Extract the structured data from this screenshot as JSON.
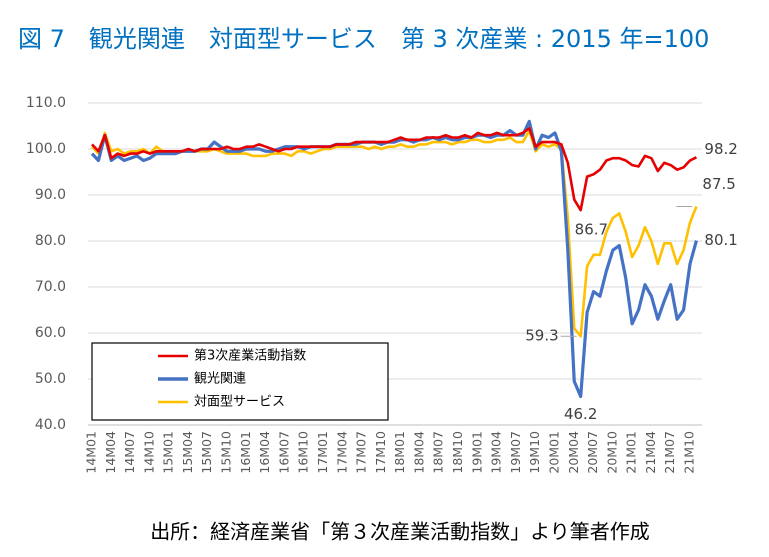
{
  "chart_data": {
    "type": "line",
    "title": "図 7　観光関連　対面型サービス　第 3 次産業 : 2015 年=100",
    "source": "出所：経済産業省「第３次産業活動指数」より筆者作成",
    "categories": [
      "14M01",
      null,
      null,
      "14M04",
      null,
      null,
      "14M07",
      null,
      null,
      "14M10",
      null,
      null,
      "15M01",
      null,
      null,
      "15M04",
      null,
      null,
      "15M07",
      null,
      null,
      "15M10",
      null,
      null,
      "16M01",
      null,
      null,
      "16M04",
      null,
      null,
      "16M07",
      null,
      null,
      "16M10",
      null,
      null,
      "17M01",
      null,
      null,
      "17M04",
      null,
      null,
      "17M07",
      null,
      null,
      "17M10",
      null,
      null,
      "18M01",
      null,
      null,
      "18M04",
      null,
      null,
      "18M07",
      null,
      null,
      "18M10",
      null,
      null,
      "19M01",
      null,
      null,
      "19M04",
      null,
      null,
      "19M07",
      null,
      null,
      "19M10",
      null,
      null,
      "20M01",
      null,
      null,
      "20M04",
      null,
      null,
      "20M07",
      null,
      null,
      "20M10",
      null,
      null,
      "21M01",
      null,
      null,
      "21M04",
      null,
      null,
      "21M07",
      null,
      null,
      "21M10",
      null
    ],
    "ylim": [
      40,
      110
    ],
    "yticks": [
      {
        "value": 40,
        "label": "40.0"
      },
      {
        "value": 50,
        "label": "50.0"
      },
      {
        "value": 60,
        "label": "60.0"
      },
      {
        "value": 70,
        "label": "70.0"
      },
      {
        "value": 80,
        "label": "80.0"
      },
      {
        "value": 90,
        "label": "90.0"
      },
      {
        "value": 100,
        "label": "100.0"
      },
      {
        "value": 110,
        "label": "110.0"
      }
    ],
    "grid": true,
    "legend": "bottom-left",
    "series": [
      {
        "name": "第3次産業活動指数",
        "color": "#e60000",
        "values": [
          101,
          99.5,
          103,
          98,
          99,
          98.5,
          99,
          99,
          99.5,
          99,
          99.5,
          99.5,
          99.5,
          99.5,
          99.5,
          100,
          99.5,
          100,
          100,
          100,
          100,
          100.5,
          100,
          100,
          100.5,
          100.5,
          101,
          100.5,
          100,
          99.5,
          100,
          100,
          100.5,
          100.5,
          100.5,
          100.5,
          100.5,
          100.5,
          101,
          101,
          101,
          101.5,
          101.5,
          101.5,
          101.5,
          101.5,
          101.5,
          102,
          102.5,
          102,
          102,
          102,
          102.5,
          102.5,
          102.5,
          103,
          102.5,
          102.5,
          103,
          102.5,
          103.5,
          103,
          103,
          103.5,
          103,
          103,
          103,
          103.5,
          104.5,
          100.5,
          101.5,
          101.5,
          101.5,
          101,
          97,
          89,
          86.7,
          94,
          94.5,
          95.5,
          97.5,
          98,
          98,
          97.5,
          96.5,
          96.2,
          98.5,
          98,
          95.2,
          97,
          96.5,
          95.5,
          96,
          97.5,
          98.2
        ],
        "value_labels": [
          null,
          null,
          null,
          null,
          null,
          null,
          null,
          null,
          null,
          null,
          null,
          null,
          null,
          null,
          null,
          null,
          null,
          null,
          null,
          null,
          null,
          null,
          null,
          null,
          null,
          null,
          null,
          null,
          null,
          null,
          null,
          null,
          null,
          null,
          null,
          null,
          null,
          null,
          null,
          null,
          null,
          null,
          null,
          null,
          null,
          null,
          null,
          null,
          null,
          null,
          null,
          null,
          null,
          null,
          null,
          null,
          null,
          null,
          null,
          null,
          null,
          null,
          null,
          null,
          null,
          null,
          null,
          null,
          null,
          null,
          null,
          null,
          null,
          null,
          null,
          null,
          "86.7",
          null,
          null,
          null,
          null,
          null,
          null,
          null,
          null,
          null,
          null,
          null,
          null,
          null,
          null,
          null,
          null,
          null,
          "98.2"
        ]
      },
      {
        "name": "観光関連",
        "color": "#4472c4",
        "values": [
          99,
          97.5,
          103,
          97.5,
          98.5,
          97.5,
          98,
          98.5,
          97.5,
          98,
          99,
          99,
          99,
          99,
          99.5,
          99.5,
          99.5,
          100,
          100,
          101.5,
          100.5,
          99.5,
          99.5,
          99.5,
          100,
          100,
          100,
          99.5,
          99.5,
          100,
          100.5,
          100.5,
          100.5,
          100,
          100.5,
          100.5,
          100.5,
          100.5,
          101,
          101,
          101,
          101,
          101.5,
          101.5,
          101.5,
          101,
          101.5,
          101.5,
          102,
          102,
          101.5,
          102,
          102,
          102.5,
          102,
          102.5,
          102,
          102,
          102.5,
          102.5,
          103,
          103,
          102.5,
          103,
          103,
          104,
          103,
          103,
          106,
          100,
          103,
          102.5,
          103.5,
          99.5,
          78,
          49.5,
          46.2,
          64.5,
          69,
          68,
          73.5,
          78,
          79,
          72,
          62,
          65,
          70.5,
          68,
          63,
          67,
          70.5,
          63,
          65,
          75,
          80.1
        ],
        "value_labels": [
          null,
          null,
          null,
          null,
          null,
          null,
          null,
          null,
          null,
          null,
          null,
          null,
          null,
          null,
          null,
          null,
          null,
          null,
          null,
          null,
          null,
          null,
          null,
          null,
          null,
          null,
          null,
          null,
          null,
          null,
          null,
          null,
          null,
          null,
          null,
          null,
          null,
          null,
          null,
          null,
          null,
          null,
          null,
          null,
          null,
          null,
          null,
          null,
          null,
          null,
          null,
          null,
          null,
          null,
          null,
          null,
          null,
          null,
          null,
          null,
          null,
          null,
          null,
          null,
          null,
          null,
          null,
          null,
          null,
          null,
          null,
          null,
          null,
          null,
          null,
          null,
          "46.2",
          null,
          null,
          null,
          null,
          null,
          null,
          null,
          null,
          null,
          null,
          null,
          null,
          null,
          null,
          null,
          null,
          null,
          "80.1"
        ]
      },
      {
        "name": "対面型サービス",
        "color": "#ffc000",
        "values": [
          100.5,
          99,
          103.5,
          99.5,
          100,
          99,
          99.5,
          99.5,
          100,
          99,
          100.5,
          99.5,
          99.5,
          99.5,
          99.5,
          99.5,
          99.5,
          99.5,
          99.5,
          100,
          99.5,
          99,
          99,
          99,
          99,
          98.5,
          98.5,
          98.5,
          99,
          99,
          99,
          98.5,
          99.5,
          99.5,
          99,
          99.5,
          100,
          100,
          100.5,
          100.5,
          100.5,
          100.5,
          100.5,
          100,
          100.5,
          100,
          100.5,
          100.5,
          101,
          100.5,
          100.5,
          101,
          101,
          101.5,
          101.5,
          101.5,
          101,
          101.5,
          101.5,
          102,
          102,
          101.5,
          101.5,
          102,
          102,
          102.5,
          101.5,
          101.5,
          104,
          99.5,
          101,
          100.5,
          101,
          100,
          85,
          61,
          59.3,
          74.5,
          77,
          77,
          82,
          85,
          86,
          82,
          76.5,
          79,
          83,
          80,
          75,
          79.5,
          79.5,
          75,
          78,
          84,
          87.5
        ],
        "value_labels": [
          null,
          null,
          null,
          null,
          null,
          null,
          null,
          null,
          null,
          null,
          null,
          null,
          null,
          null,
          null,
          null,
          null,
          null,
          null,
          null,
          null,
          null,
          null,
          null,
          null,
          null,
          null,
          null,
          null,
          null,
          null,
          null,
          null,
          null,
          null,
          null,
          null,
          null,
          null,
          null,
          null,
          null,
          null,
          null,
          null,
          null,
          null,
          null,
          null,
          null,
          null,
          null,
          null,
          null,
          null,
          null,
          null,
          null,
          null,
          null,
          null,
          null,
          null,
          null,
          null,
          null,
          null,
          null,
          null,
          null,
          null,
          null,
          null,
          null,
          null,
          null,
          "59.3",
          null,
          null,
          null,
          null,
          null,
          null,
          null,
          null,
          null,
          null,
          null,
          null,
          null,
          null,
          null,
          null,
          null,
          "87.5"
        ]
      }
    ]
  }
}
